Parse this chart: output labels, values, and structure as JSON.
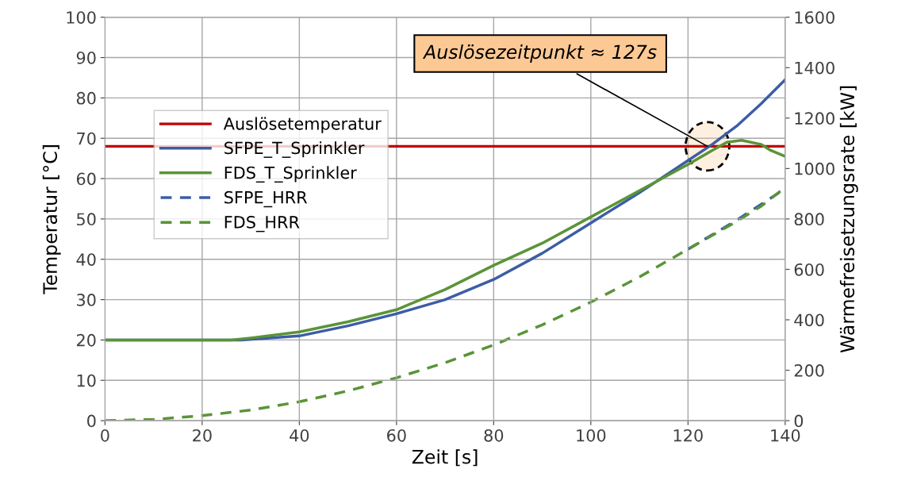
{
  "chart_data": {
    "type": "line",
    "xlabel": "Zeit [s]",
    "ylabel": "Temperatur [°C]",
    "y2label": "Wärmefreisetzungsrate [kW]",
    "xlim": [
      0,
      140
    ],
    "xticks": [
      0,
      20,
      40,
      60,
      80,
      100,
      120,
      140
    ],
    "ylim": [
      0,
      100
    ],
    "yticks": [
      0,
      10,
      20,
      30,
      40,
      50,
      60,
      70,
      80,
      90,
      100
    ],
    "y2lim": [
      0,
      1600
    ],
    "y2ticks": [
      0,
      200,
      400,
      600,
      800,
      1000,
      1200,
      1400,
      1600
    ],
    "grid": true,
    "legend": "left",
    "marker": "none",
    "ref_lines": [
      {
        "axis": "y",
        "value": 68,
        "label": "Auslösetemperatur",
        "color": "#c00000",
        "line_style": "solid"
      }
    ],
    "annotations": [
      {
        "text": "Auslösezeitpunkt ≈ 127s",
        "x": 124,
        "y": 68
      }
    ],
    "series": [
      {
        "name": "SFPE_T_Sprinkler",
        "color": "#3c5da6",
        "line_style": "solid",
        "x": [
          0,
          28,
          40,
          50,
          60,
          70,
          80,
          90,
          100,
          110,
          120,
          125,
          130,
          135,
          140
        ],
        "values": [
          20,
          20,
          21,
          23.5,
          26.5,
          30,
          35,
          41.5,
          49,
          56.5,
          64.5,
          68.5,
          73,
          78.5,
          84.5
        ]
      },
      {
        "name": "FDS_T_Sprinkler",
        "color": "#5a9437",
        "line_style": "solid",
        "x": [
          0,
          26,
          30,
          40,
          50,
          60,
          70,
          80,
          90,
          100,
          110,
          120,
          125,
          128,
          131,
          135,
          137,
          140
        ],
        "values": [
          20,
          20,
          20.5,
          22,
          24.5,
          27.5,
          32.5,
          38.5,
          44,
          50.5,
          57,
          63.5,
          67,
          69,
          69.5,
          68.5,
          67,
          65.5
        ]
      },
      {
        "name": "SFPE_HRR",
        "color": "#3c5da6",
        "line_style": "dashed",
        "axis": "y2",
        "x": [
          120,
          130,
          140
        ],
        "values": [
          680,
          795,
          920
        ]
      },
      {
        "name": "FDS_HRR",
        "color": "#5a9437",
        "line_style": "dashed",
        "axis": "y2",
        "x": [
          0,
          10,
          20,
          30,
          40,
          50,
          60,
          70,
          80,
          90,
          100,
          110,
          120,
          130,
          135,
          140
        ],
        "values": [
          0,
          5,
          20,
          42,
          75,
          118,
          170,
          230,
          300,
          380,
          470,
          570,
          680,
          790,
          850,
          925
        ]
      }
    ]
  }
}
